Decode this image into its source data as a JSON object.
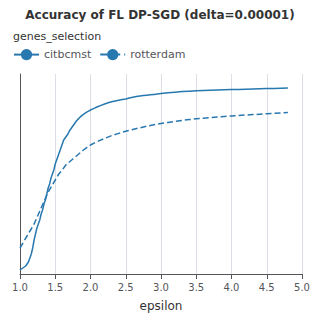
{
  "chart_data": {
    "type": "line",
    "title": "Accuracy of FL DP-SGD (delta=0.00001)",
    "xlabel": "epsilon",
    "legend_title": "genes_selection",
    "legend": "upper left",
    "grid": true,
    "tick_labels": "x",
    "xlim": [
      1.0,
      5.0
    ],
    "xticks": [
      {
        "value": 1.0,
        "label": "1.0"
      },
      1.5,
      {
        "value": 2.0,
        "label": "2.0"
      },
      2.5,
      {
        "value": 3.0,
        "label": "3.0"
      },
      3.5,
      {
        "value": 4.0,
        "label": "4.0"
      },
      4.5,
      {
        "value": 5.0,
        "label": "5.0"
      }
    ],
    "ylim": [
      0,
      1
    ],
    "yticks": [],
    "series": [
      {
        "name": "citbcmst",
        "color": "#2878b0",
        "line_style": "solid",
        "x": [
          1.0,
          1.02,
          1.04,
          1.06,
          1.08,
          1.1,
          1.12,
          1.14,
          1.16,
          1.18,
          1.2,
          1.22,
          1.24,
          1.26,
          1.28,
          1.3,
          1.32,
          1.34,
          1.36,
          1.38,
          1.4,
          1.42,
          1.44,
          1.46,
          1.48,
          1.5,
          1.52,
          1.54,
          1.56,
          1.58,
          1.6,
          1.62,
          1.64,
          1.66,
          1.68,
          1.7,
          1.72,
          1.74,
          1.76,
          1.78,
          1.8,
          1.82,
          1.84,
          1.86,
          1.88,
          1.9,
          1.92,
          1.94,
          1.96,
          1.98,
          2.0,
          2.05,
          2.1,
          2.15,
          2.2,
          2.25,
          2.3,
          2.35,
          2.4,
          2.45,
          2.5,
          2.55,
          2.6,
          2.65,
          2.7,
          2.75,
          2.8,
          2.85,
          2.9,
          2.95,
          3.0,
          3.1,
          3.2,
          3.3,
          3.4,
          3.5,
          3.6,
          3.7,
          3.8,
          3.9,
          4.0,
          4.1,
          4.2,
          4.3,
          4.4,
          4.5,
          4.6,
          4.7,
          4.8
        ],
        "values": [
          0.02,
          0.025,
          0.03,
          0.035,
          0.04,
          0.05,
          0.06,
          0.08,
          0.1,
          0.13,
          0.17,
          0.2,
          0.23,
          0.25,
          0.27,
          0.3,
          0.32,
          0.35,
          0.37,
          0.4,
          0.43,
          0.45,
          0.48,
          0.5,
          0.52,
          0.55,
          0.57,
          0.59,
          0.61,
          0.63,
          0.65,
          0.67,
          0.68,
          0.69,
          0.7,
          0.715,
          0.725,
          0.735,
          0.745,
          0.755,
          0.765,
          0.773,
          0.78,
          0.787,
          0.793,
          0.798,
          0.803,
          0.808,
          0.812,
          0.816,
          0.82,
          0.828,
          0.836,
          0.843,
          0.85,
          0.856,
          0.861,
          0.865,
          0.869,
          0.872,
          0.875,
          0.88,
          0.884,
          0.887,
          0.89,
          0.892,
          0.894,
          0.896,
          0.898,
          0.9,
          0.902,
          0.906,
          0.909,
          0.912,
          0.914,
          0.916,
          0.918,
          0.919,
          0.92,
          0.921,
          0.922,
          0.923,
          0.924,
          0.925,
          0.926,
          0.927,
          0.928,
          0.929,
          0.93
        ]
      },
      {
        "name": "rotterdam",
        "color": "#2878b0",
        "line_style": "dashed",
        "x": [
          1.0,
          1.05,
          1.1,
          1.15,
          1.2,
          1.25,
          1.3,
          1.35,
          1.4,
          1.45,
          1.5,
          1.55,
          1.6,
          1.65,
          1.7,
          1.75,
          1.8,
          1.85,
          1.9,
          1.95,
          2.0,
          2.1,
          2.2,
          2.3,
          2.4,
          2.5,
          2.6,
          2.7,
          2.8,
          2.9,
          3.0,
          3.1,
          3.2,
          3.3,
          3.4,
          3.5,
          3.6,
          3.7,
          3.8,
          3.9,
          4.0,
          4.1,
          4.2,
          4.3,
          4.4,
          4.5,
          4.6,
          4.7,
          4.8
        ],
        "values": [
          0.13,
          0.16,
          0.19,
          0.22,
          0.25,
          0.29,
          0.33,
          0.37,
          0.41,
          0.44,
          0.47,
          0.5,
          0.52,
          0.545,
          0.56,
          0.575,
          0.59,
          0.605,
          0.62,
          0.633,
          0.645,
          0.663,
          0.678,
          0.692,
          0.703,
          0.714,
          0.723,
          0.731,
          0.739,
          0.746,
          0.752,
          0.758,
          0.763,
          0.768,
          0.772,
          0.776,
          0.779,
          0.782,
          0.785,
          0.788,
          0.79,
          0.793,
          0.795,
          0.797,
          0.799,
          0.801,
          0.803,
          0.805,
          0.807
        ]
      }
    ]
  }
}
